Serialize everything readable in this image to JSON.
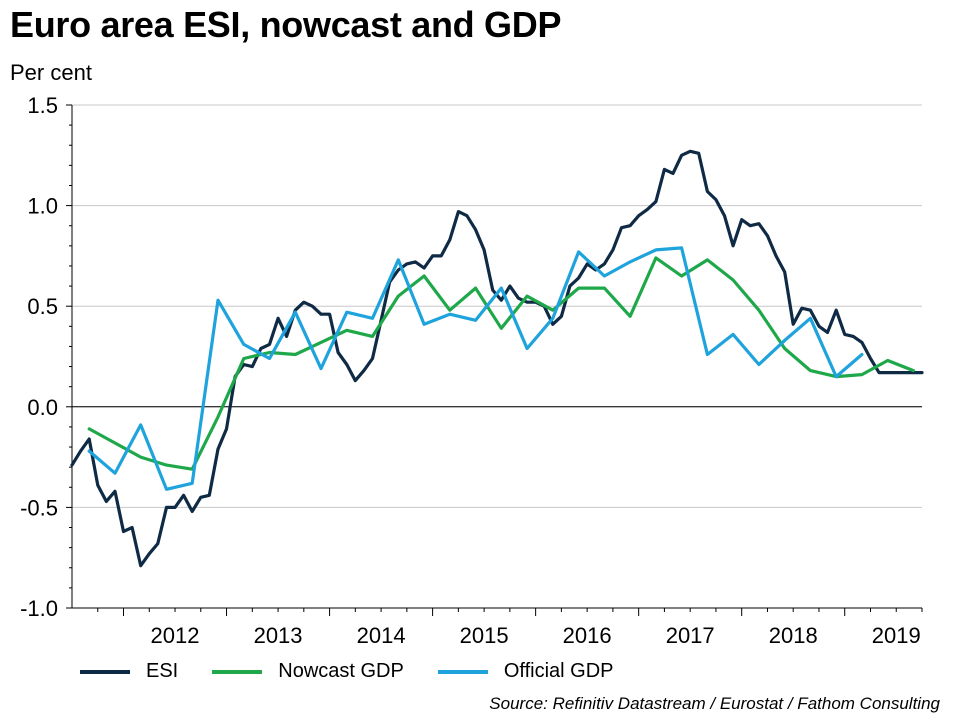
{
  "chart_data": {
    "type": "line",
    "title": "Euro area ESI, nowcast and GDP",
    "ylabel": "Per cent",
    "ylim": [
      -1.0,
      1.5
    ],
    "yticks": [
      -1.0,
      -0.5,
      0.0,
      0.5,
      1.0,
      1.5
    ],
    "ytick_labels": [
      "-1.0",
      "-0.5",
      "0.0",
      "0.5",
      "1.0",
      "1.5"
    ],
    "x_years": [
      "2012",
      "2013",
      "2014",
      "2015",
      "2016",
      "2017",
      "2018",
      "2019"
    ],
    "xlim": [
      2011.5,
      2019.75
    ],
    "grid": true,
    "legend_position": "bottom",
    "series": [
      {
        "name": "ESI",
        "color": "#0f2a44",
        "x": [
          2011.5,
          2011.583,
          2011.667,
          2011.75,
          2011.833,
          2011.917,
          2012.0,
          2012.083,
          2012.167,
          2012.25,
          2012.333,
          2012.417,
          2012.5,
          2012.583,
          2012.667,
          2012.75,
          2012.833,
          2012.917,
          2013.0,
          2013.083,
          2013.167,
          2013.25,
          2013.333,
          2013.417,
          2013.5,
          2013.583,
          2013.667,
          2013.75,
          2013.833,
          2013.917,
          2014.0,
          2014.083,
          2014.167,
          2014.25,
          2014.333,
          2014.417,
          2014.5,
          2014.583,
          2014.667,
          2014.75,
          2014.833,
          2014.917,
          2015.0,
          2015.083,
          2015.167,
          2015.25,
          2015.333,
          2015.417,
          2015.5,
          2015.583,
          2015.667,
          2015.75,
          2015.833,
          2015.917,
          2016.0,
          2016.083,
          2016.167,
          2016.25,
          2016.333,
          2016.417,
          2016.5,
          2016.583,
          2016.667,
          2016.75,
          2016.833,
          2016.917,
          2017.0,
          2017.083,
          2017.167,
          2017.25,
          2017.333,
          2017.417,
          2017.5,
          2017.583,
          2017.667,
          2017.75,
          2017.833,
          2017.917,
          2018.0,
          2018.083,
          2018.167,
          2018.25,
          2018.333,
          2018.417,
          2018.5,
          2018.583,
          2018.667,
          2018.75,
          2018.833,
          2018.917,
          2019.0,
          2019.083,
          2019.167,
          2019.25,
          2019.333,
          2019.417,
          2019.5,
          2019.583,
          2019.667,
          2019.75
        ],
        "values": [
          -0.29,
          -0.22,
          -0.16,
          -0.39,
          -0.47,
          -0.42,
          -0.62,
          -0.6,
          -0.79,
          -0.73,
          -0.68,
          -0.5,
          -0.5,
          -0.44,
          -0.52,
          -0.45,
          -0.44,
          -0.21,
          -0.11,
          0.15,
          0.21,
          0.2,
          0.29,
          0.31,
          0.44,
          0.35,
          0.48,
          0.52,
          0.5,
          0.46,
          0.46,
          0.27,
          0.21,
          0.13,
          0.18,
          0.24,
          0.43,
          0.62,
          0.68,
          0.71,
          0.72,
          0.69,
          0.75,
          0.75,
          0.83,
          0.97,
          0.95,
          0.88,
          0.78,
          0.58,
          0.53,
          0.6,
          0.54,
          0.52,
          0.52,
          0.5,
          0.41,
          0.45,
          0.6,
          0.64,
          0.71,
          0.68,
          0.71,
          0.78,
          0.89,
          0.9,
          0.95,
          0.98,
          1.02,
          1.18,
          1.16,
          1.25,
          1.27,
          1.26,
          1.07,
          1.03,
          0.95,
          0.8,
          0.93,
          0.9,
          0.91,
          0.85,
          0.75,
          0.67,
          0.41,
          0.49,
          0.48,
          0.4,
          0.37,
          0.48,
          0.36,
          0.35,
          0.32,
          0.24,
          0.17,
          0.17,
          0.17,
          0.17,
          0.17,
          0.17
        ]
      },
      {
        "name": "Nowcast GDP",
        "color": "#1fa84a",
        "x": [
          2011.667,
          2011.917,
          2012.167,
          2012.417,
          2012.667,
          2012.917,
          2013.167,
          2013.417,
          2013.667,
          2013.917,
          2014.167,
          2014.417,
          2014.667,
          2014.917,
          2015.167,
          2015.417,
          2015.667,
          2015.917,
          2016.167,
          2016.417,
          2016.667,
          2016.917,
          2017.167,
          2017.417,
          2017.667,
          2017.917,
          2018.167,
          2018.417,
          2018.667,
          2018.917,
          2019.167,
          2019.417,
          2019.667
        ],
        "values": [
          -0.11,
          -0.18,
          -0.25,
          -0.29,
          -0.31,
          -0.05,
          0.24,
          0.27,
          0.26,
          0.32,
          0.38,
          0.35,
          0.55,
          0.65,
          0.48,
          0.59,
          0.39,
          0.55,
          0.48,
          0.59,
          0.59,
          0.45,
          0.74,
          0.65,
          0.73,
          0.63,
          0.48,
          0.29,
          0.18,
          0.15,
          0.16,
          0.23,
          0.18
        ]
      },
      {
        "name": "Official GDP",
        "color": "#1ea3dc",
        "x": [
          2011.667,
          2011.917,
          2012.167,
          2012.417,
          2012.667,
          2012.917,
          2013.167,
          2013.417,
          2013.667,
          2013.917,
          2014.167,
          2014.417,
          2014.667,
          2014.917,
          2015.167,
          2015.417,
          2015.667,
          2015.917,
          2016.167,
          2016.417,
          2016.667,
          2016.917,
          2017.167,
          2017.417,
          2017.667,
          2017.917,
          2018.167,
          2018.417,
          2018.667,
          2018.917,
          2019.167,
          2019.417
        ],
        "values": [
          -0.22,
          -0.33,
          -0.09,
          -0.41,
          -0.38,
          0.53,
          0.31,
          0.24,
          0.47,
          0.19,
          0.47,
          0.44,
          0.73,
          0.41,
          0.46,
          0.43,
          0.59,
          0.29,
          0.44,
          0.77,
          0.65,
          0.72,
          0.78,
          0.79,
          0.26,
          0.36,
          0.21,
          0.33,
          0.44,
          0.15,
          0.26,
          null
        ]
      }
    ]
  },
  "legend": [
    {
      "label": "ESI",
      "color": "#0f2a44"
    },
    {
      "label": "Nowcast GDP",
      "color": "#1fa84a"
    },
    {
      "label": "Official GDP",
      "color": "#1ea3dc"
    }
  ],
  "source": "Source: Refinitiv Datastream / Eurostat / Fathom Consulting"
}
